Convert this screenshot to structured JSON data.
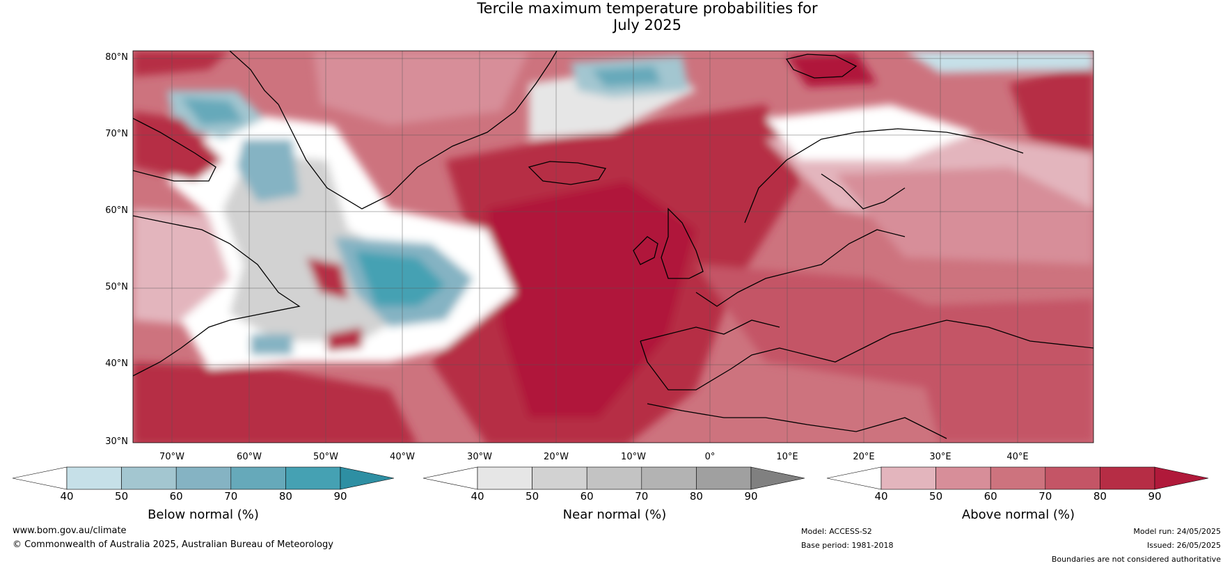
{
  "title": {
    "line1": "Tercile maximum temperature probabilities for",
    "line2": "July 2025"
  },
  "map": {
    "lat_labels": [
      "80°N",
      "70°N",
      "60°N",
      "50°N",
      "40°N",
      "30°N"
    ],
    "lon_labels": [
      "70°W",
      "60°W",
      "50°W",
      "40°W",
      "30°W",
      "20°W",
      "10°W",
      "0°",
      "10°E",
      "20°E",
      "30°E",
      "40°E"
    ]
  },
  "colorbars": [
    {
      "label": "Below normal (%)",
      "ticks": [
        "40",
        "50",
        "60",
        "70",
        "80",
        "90"
      ],
      "colors": [
        "#ffffff",
        "#c6e0e8",
        "#a3c6d0",
        "#85b3c3",
        "#66a9ba",
        "#45a1b3",
        "#2e8fa3"
      ]
    },
    {
      "label": "Near normal (%)",
      "ticks": [
        "40",
        "50",
        "60",
        "70",
        "80",
        "90"
      ],
      "colors": [
        "#ffffff",
        "#e6e6e6",
        "#d2d2d2",
        "#c3c3c3",
        "#b3b3b3",
        "#a0a0a0",
        "#808080"
      ]
    },
    {
      "label": "Above normal (%)",
      "ticks": [
        "40",
        "50",
        "60",
        "70",
        "80",
        "90"
      ],
      "colors": [
        "#ffffff",
        "#e3b5bd",
        "#d78e99",
        "#cd737e",
        "#c45566",
        "#b62d45",
        "#b0193a"
      ]
    }
  ],
  "footer": {
    "website": "www.bom.gov.au/climate",
    "copyright": "© Commonwealth of Australia 2025, Australian Bureau of Meteorology",
    "model": "Model: ACCESS-S2",
    "base_period": "Base period: 1981-2018",
    "model_run": "Model run: 24/05/2025",
    "issued": "Issued: 26/05/2025",
    "disclaimer": "Boundaries are not considered authoritative"
  }
}
